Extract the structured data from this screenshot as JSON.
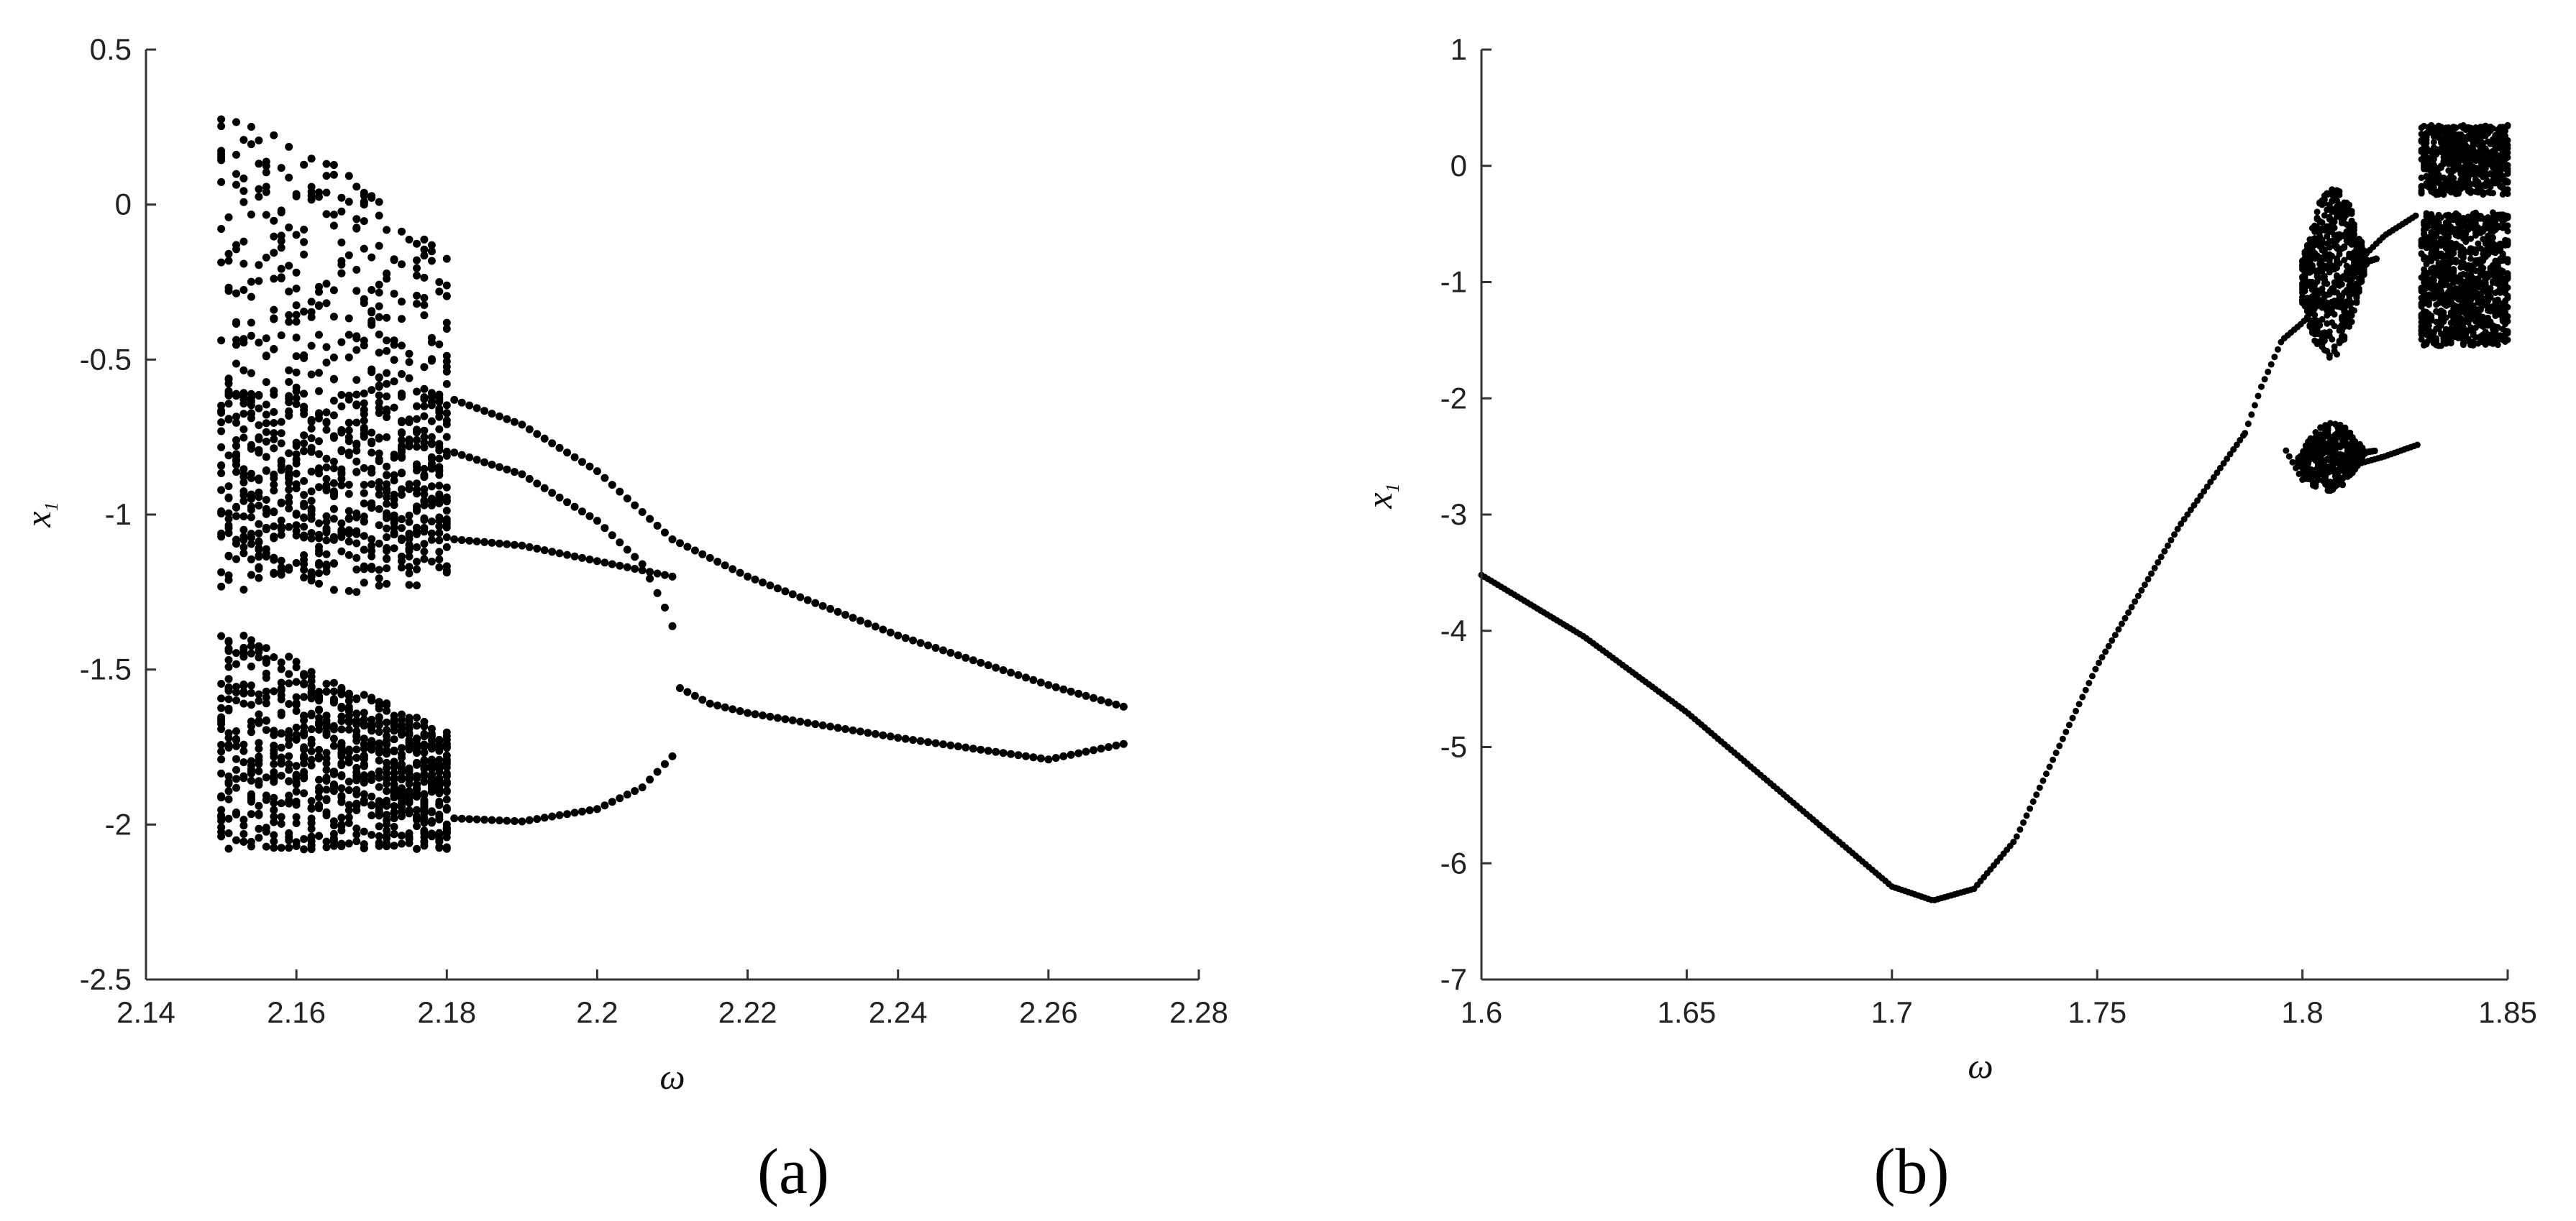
{
  "chart_data": [
    {
      "type": "scatter",
      "panel_label": "(a)",
      "xlabel": "ω",
      "ylabel_main": "x",
      "ylabel_sub": "1",
      "xlim": [
        2.14,
        2.28
      ],
      "ylim": [
        -2.5,
        0.5
      ],
      "xticks": [
        "2.14",
        "2.16",
        "2.18",
        "2.2",
        "2.22",
        "2.24",
        "2.26",
        "2.28"
      ],
      "yticks": [
        "0.5",
        "0",
        "-0.5",
        "-1",
        "-1.5",
        "-2",
        "-2.5"
      ],
      "grid": false,
      "chaotic_band": {
        "x_range": [
          2.15,
          2.18
        ],
        "upper_y_range": [
          -1.25,
          0.28
        ],
        "lower_y_range": [
          -2.08,
          -1.35
        ]
      },
      "series": [
        {
          "values": [
            [
              2.181,
              -0.63
            ],
            [
              2.19,
              -0.71
            ],
            [
              2.2,
              -0.86
            ],
            [
              2.21,
              -1.08
            ],
            [
              2.22,
              -1.2
            ],
            [
              2.24,
              -1.39
            ],
            [
              2.26,
              -1.55
            ],
            [
              2.27,
              -1.62
            ]
          ]
        },
        {
          "values": [
            [
              2.181,
              -0.8
            ],
            [
              2.19,
              -0.87
            ],
            [
              2.2,
              -1.02
            ],
            [
              2.206,
              -1.16
            ],
            [
              2.209,
              -1.3
            ],
            [
              2.21,
              -1.36
            ]
          ]
        },
        {
          "values": [
            [
              2.181,
              -1.08
            ],
            [
              2.19,
              -1.1
            ],
            [
              2.2,
              -1.15
            ],
            [
              2.21,
              -1.2
            ]
          ]
        },
        {
          "values": [
            [
              2.181,
              -1.98
            ],
            [
              2.19,
              -1.99
            ],
            [
              2.2,
              -1.95
            ],
            [
              2.206,
              -1.88
            ],
            [
              2.21,
              -1.78
            ]
          ]
        },
        {
          "values": [
            [
              2.211,
              -1.56
            ],
            [
              2.215,
              -1.61
            ],
            [
              2.22,
              -1.64
            ],
            [
              2.24,
              -1.72
            ],
            [
              2.26,
              -1.79
            ],
            [
              2.27,
              -1.74
            ]
          ]
        }
      ]
    },
    {
      "type": "scatter",
      "panel_label": "(b)",
      "xlabel": "ω",
      "ylabel_main": "x",
      "ylabel_sub": "1",
      "xlim": [
        1.6,
        1.85
      ],
      "ylim": [
        -7,
        1
      ],
      "xticks": [
        "1.6",
        "1.65",
        "1.7",
        "1.75",
        "1.8",
        "1.85"
      ],
      "yticks": [
        "1",
        "0",
        "-1",
        "-2",
        "-3",
        "-4",
        "-5",
        "-6",
        "-7"
      ],
      "grid": false,
      "series": [
        {
          "values": [
            [
              1.6,
              -3.52
            ],
            [
              1.625,
              -4.05
            ],
            [
              1.65,
              -4.7
            ],
            [
              1.675,
              -5.45
            ],
            [
              1.7,
              -6.2
            ],
            [
              1.71,
              -6.32
            ],
            [
              1.72,
              -6.22
            ],
            [
              1.73,
              -5.8
            ],
            [
              1.74,
              -5.05
            ],
            [
              1.75,
              -4.3
            ],
            [
              1.76,
              -3.7
            ],
            [
              1.77,
              -3.1
            ],
            [
              1.78,
              -2.6
            ],
            [
              1.786,
              -2.3
            ]
          ]
        },
        {
          "values": [
            [
              1.786,
              -2.3
            ],
            [
              1.79,
              -1.9
            ],
            [
              1.795,
              -1.5
            ],
            [
              1.8,
              -1.35
            ],
            [
              1.81,
              -0.95
            ],
            [
              1.82,
              -0.6
            ],
            [
              1.828,
              -0.42
            ]
          ]
        },
        {
          "values": [
            [
              1.796,
              -2.45
            ],
            [
              1.8,
              -2.7
            ],
            [
              1.81,
              -2.6
            ],
            [
              1.82,
              -2.5
            ],
            [
              1.828,
              -2.4
            ]
          ]
        }
      ],
      "chaotic_regions": [
        {
          "x_range": [
            1.8,
            1.818
          ],
          "y_range": [
            -1.75,
            -0.3
          ]
        },
        {
          "x_range": [
            1.799,
            1.818
          ],
          "y_range": [
            -2.82,
            -2.22
          ]
        },
        {
          "x_range": [
            1.829,
            1.85
          ],
          "y_range": [
            -0.25,
            0.35
          ]
        },
        {
          "x_range": [
            1.829,
            1.85
          ],
          "y_range": [
            -1.58,
            -0.4
          ]
        }
      ]
    }
  ]
}
